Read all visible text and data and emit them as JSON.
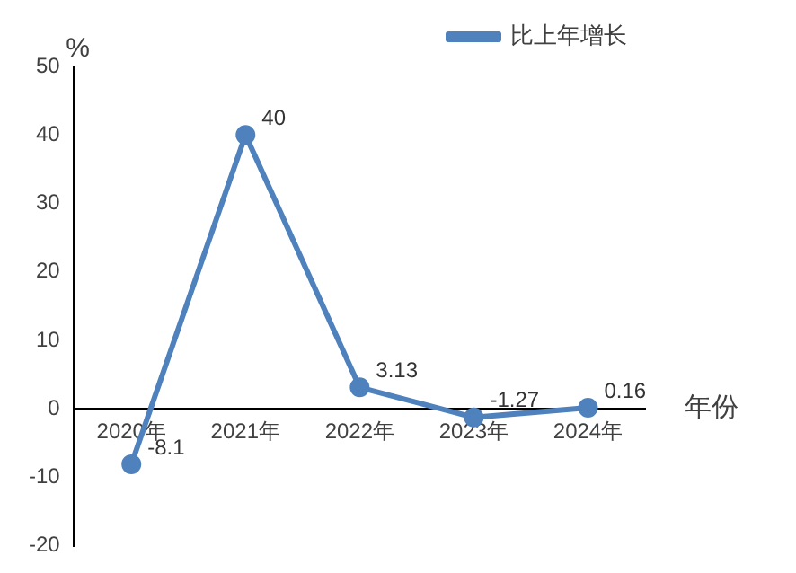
{
  "chart_data": {
    "type": "line",
    "ylabel": "%",
    "xlabel": "年份",
    "categories": [
      "2020年",
      "2021年",
      "2022年",
      "2023年",
      "2024年"
    ],
    "series": [
      {
        "name": "比上年增长",
        "color": "#4f81bd",
        "values": [
          -8.1,
          40,
          3.13,
          -1.27,
          0.16
        ]
      }
    ],
    "ylim": [
      -20,
      50
    ],
    "yticks": [
      -20,
      -10,
      0,
      10,
      20,
      30,
      40,
      50
    ],
    "grid": false,
    "legend": "top right",
    "marker": "circle",
    "line_style": "solid",
    "data_labels": true
  }
}
